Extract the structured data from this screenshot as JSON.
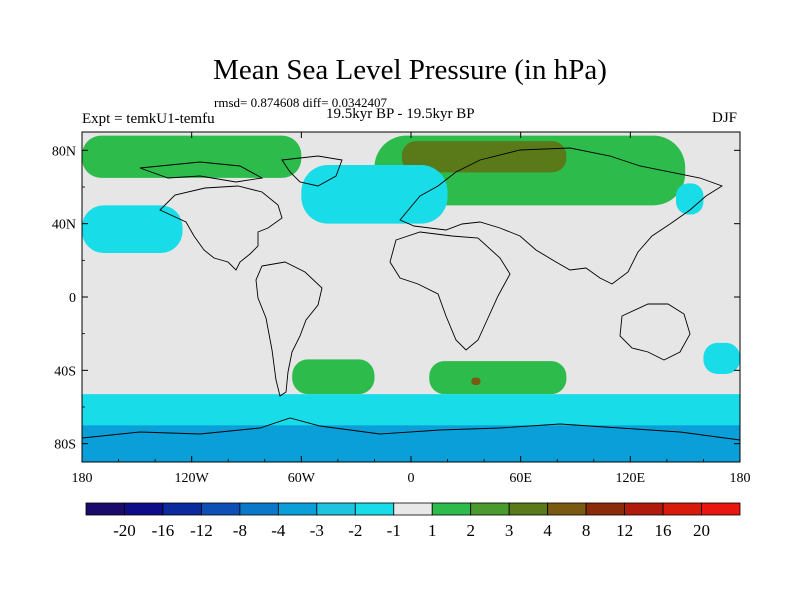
{
  "chart_data": {
    "type": "heatmap",
    "title": "Mean Sea Level Pressure (in hPa)",
    "stats_text": "rmsd= 0.874608  diff= 0.0342407",
    "subtitle": "19.5kyr BP - 19.5kyr BP",
    "left_label": "Expt = temkU1-temfu",
    "right_label": "DJF",
    "x_axis": {
      "range": [
        -180,
        180
      ],
      "ticks": [
        -180,
        -120,
        -60,
        0,
        60,
        120,
        180
      ],
      "tick_labels": [
        "180",
        "120W",
        "60W",
        "0",
        "60E",
        "120E",
        "180"
      ]
    },
    "y_axis": {
      "range": [
        -90,
        90
      ],
      "ticks": [
        80,
        40,
        0,
        -40,
        -80
      ],
      "tick_labels": [
        "80N",
        "40N",
        "0",
        "40S",
        "80S"
      ]
    },
    "colorbar": {
      "labels": [
        "-20",
        "-16",
        "-12",
        "-8",
        "-4",
        "-3",
        "-2",
        "-1",
        "1",
        "2",
        "3",
        "4",
        "8",
        "12",
        "16",
        "20"
      ],
      "colors": [
        "#1a0a6b",
        "#0d0d8a",
        "#0a2a9e",
        "#0d4fb5",
        "#0a78c8",
        "#0a9fd8",
        "#1ec3e0",
        "#18dde8",
        "#e8e8e8",
        "#2dbb4c",
        "#4a9a2e",
        "#5a7a1a",
        "#7a5a10",
        "#8a2a08",
        "#b01a0a",
        "#d81a0a",
        "#e8160e"
      ]
    },
    "background_color": "#e6e6e6",
    "regions": [
      {
        "name": "southern-ocean-band",
        "level": -2,
        "lon": [
          -180,
          180
        ],
        "lat": [
          -90,
          -53
        ]
      },
      {
        "name": "antarctic-coast",
        "level": -3,
        "lon": [
          -180,
          180
        ],
        "lat": [
          -90,
          -70
        ]
      },
      {
        "name": "eurasia-positive",
        "level": 2,
        "lon": [
          -20,
          150
        ],
        "lat": [
          50,
          88
        ]
      },
      {
        "name": "arctic-canada-positive",
        "level": 2,
        "lon": [
          -180,
          -60
        ],
        "lat": [
          65,
          88
        ]
      },
      {
        "name": "siberia-core",
        "level": 3,
        "lon": [
          -5,
          85
        ],
        "lat": [
          68,
          85
        ]
      },
      {
        "name": "north-atlantic-negative",
        "level": -2,
        "lon": [
          -60,
          20
        ],
        "lat": [
          40,
          72
        ]
      },
      {
        "name": "north-pacific-negative",
        "level": -2,
        "lon": [
          -180,
          -125
        ],
        "lat": [
          24,
          50
        ]
      },
      {
        "name": "south-america-high",
        "level": 2,
        "lon": [
          -65,
          -20
        ],
        "lat": [
          -53,
          -34
        ]
      },
      {
        "name": "south-indian-high",
        "level": 2,
        "lon": [
          10,
          85
        ],
        "lat": [
          -53,
          -35
        ]
      },
      {
        "name": "south-indian-core",
        "level": 4,
        "lon": [
          33,
          38
        ],
        "lat": [
          -48,
          -44
        ]
      },
      {
        "name": "east-asia-negative",
        "level": -2,
        "lon": [
          145,
          160
        ],
        "lat": [
          45,
          62
        ]
      },
      {
        "name": "australia-east-negative",
        "level": -2,
        "lon": [
          160,
          180
        ],
        "lat": [
          -42,
          -25
        ]
      }
    ]
  }
}
